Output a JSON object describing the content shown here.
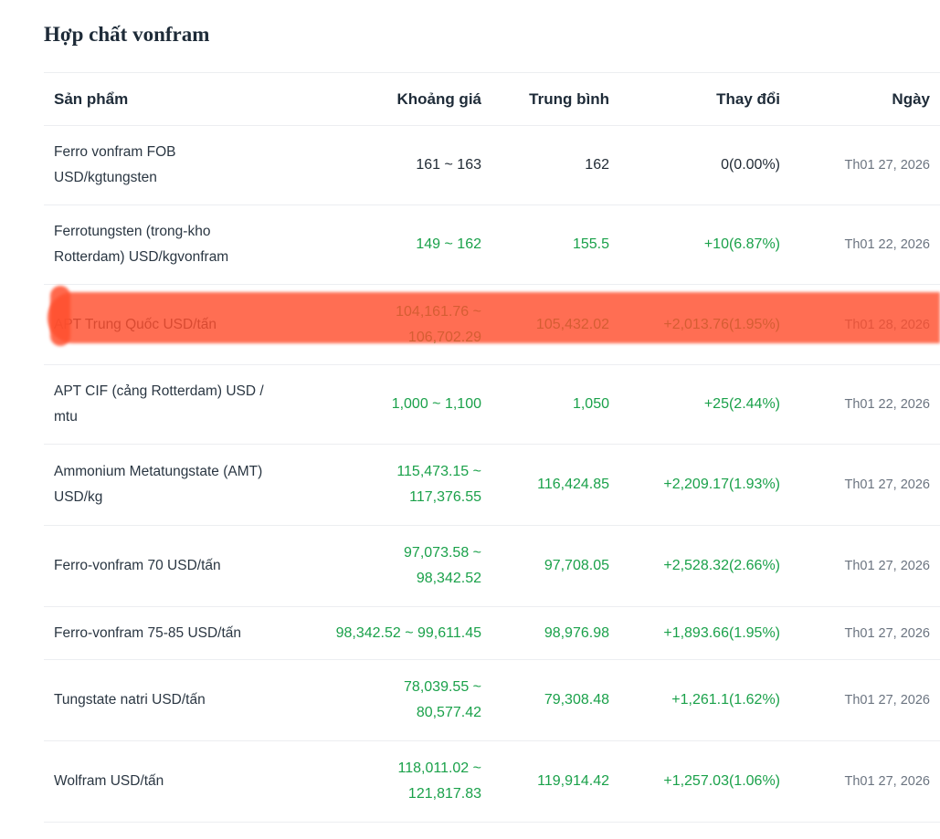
{
  "section": {
    "title": "Hợp chất vonfram"
  },
  "table": {
    "headers": {
      "product": "Sản phẩm",
      "price_range": "Khoảng giá",
      "average": "Trung bình",
      "change": "Thay đổi",
      "date": "Ngày"
    },
    "rows": [
      {
        "name_line1": "Ferro vonfram FOB",
        "name_line2": "USD/kgtungsten",
        "range_line1": "161 ~ 163",
        "range_line2": "",
        "average": "162",
        "change": "0(0.00%)",
        "date": "Th01 27, 2026",
        "trend": "neutral"
      },
      {
        "name_line1": "Ferrotungsten (trong-kho",
        "name_line2": "Rotterdam) USD/kgvonfram",
        "range_line1": "149 ~ 162",
        "range_line2": "",
        "average": "155.5",
        "change": "+10(6.87%)",
        "date": "Th01 22, 2026",
        "trend": "up"
      },
      {
        "name_line1": "APT Trung Quốc USD/tấn",
        "name_line2": "",
        "range_line1": "104,161.76 ~",
        "range_line2": "106,702.29",
        "average": "105,432.02",
        "change": "+2,013.76(1.95%)",
        "date": "Th01 28, 2026",
        "trend": "up",
        "highlighted": true
      },
      {
        "name_line1": "APT CIF (cảng Rotterdam) USD /",
        "name_line2": "mtu",
        "range_line1": "1,000 ~ 1,100",
        "range_line2": "",
        "average": "1,050",
        "change": "+25(2.44%)",
        "date": "Th01 22, 2026",
        "trend": "up"
      },
      {
        "name_line1": "Ammonium Metatungstate (AMT)",
        "name_line2": "USD/kg",
        "range_line1": "115,473.15 ~",
        "range_line2": "117,376.55",
        "average": "116,424.85",
        "change": "+2,209.17(1.93%)",
        "date": "Th01 27, 2026",
        "trend": "up"
      },
      {
        "name_line1": "Ferro-vonfram 70 USD/tấn",
        "name_line2": "",
        "range_line1": "97,073.58 ~",
        "range_line2": "98,342.52",
        "average": "97,708.05",
        "change": "+2,528.32(2.66%)",
        "date": "Th01 27, 2026",
        "trend": "up"
      },
      {
        "name_line1": "Ferro-vonfram 75-85 USD/tấn",
        "name_line2": "",
        "range_line1": "98,342.52 ~ 99,611.45",
        "range_line2": "",
        "average": "98,976.98",
        "change": "+1,893.66(1.95%)",
        "date": "Th01 27, 2026",
        "trend": "up"
      },
      {
        "name_line1": "Tungstate natri USD/tấn",
        "name_line2": "",
        "range_line1": "78,039.55 ~",
        "range_line2": "80,577.42",
        "average": "79,308.48",
        "change": "+1,261.1(1.62%)",
        "date": "Th01 27, 2026",
        "trend": "up"
      },
      {
        "name_line1": "Wolfram USD/tấn",
        "name_line2": "",
        "range_line1": "118,011.02 ~",
        "range_line2": "121,817.83",
        "average": "119,914.42",
        "change": "+1,257.03(1.06%)",
        "date": "Th01 27, 2026",
        "trend": "up"
      }
    ]
  },
  "colors": {
    "up": "#1aa14a",
    "neutral": "#1f2933",
    "highlight": "#ff4f2e"
  }
}
